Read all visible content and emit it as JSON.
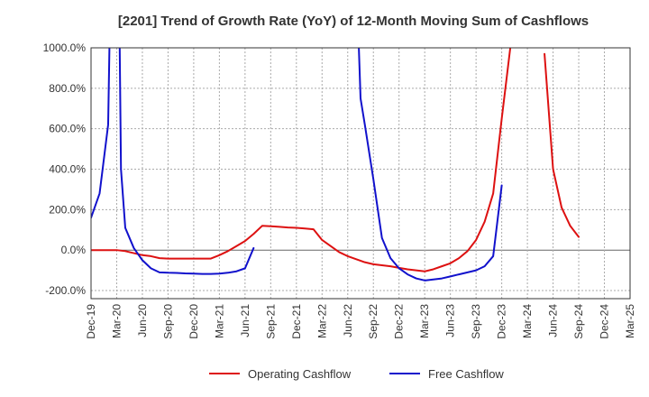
{
  "chart_data": {
    "type": "line",
    "title": "[2201]  Trend of Growth Rate (YoY) of 12-Month Moving Sum of Cashflows",
    "xlabel": "",
    "ylabel": "",
    "ylim": [
      -240,
      1000
    ],
    "yticks": [
      -200,
      0,
      200,
      400,
      600,
      800,
      1000
    ],
    "ytick_labels": [
      "-200.0%",
      "0.0%",
      "200.0%",
      "400.0%",
      "600.0%",
      "800.0%",
      "1000.0%"
    ],
    "x_start": "Dec-19",
    "x_months": 63,
    "xtick_labels": [
      "Dec-19",
      "Mar-20",
      "Jun-20",
      "Sep-20",
      "Dec-20",
      "Mar-21",
      "Jun-21",
      "Sep-21",
      "Dec-21",
      "Mar-22",
      "Jun-22",
      "Sep-22",
      "Dec-22",
      "Mar-23",
      "Jun-23",
      "Sep-23",
      "Dec-23",
      "Mar-24",
      "Jun-24",
      "Sep-24",
      "Dec-24",
      "Mar-25"
    ],
    "grid": true,
    "legend_position": "bottom",
    "series": [
      {
        "name": "Operating Cashflow",
        "color": "#dd1111",
        "points": [
          [
            0,
            0
          ],
          [
            1,
            0
          ],
          [
            2,
            0
          ],
          [
            3,
            0
          ],
          [
            4,
            -5
          ],
          [
            5,
            -15
          ],
          [
            6,
            -25
          ],
          [
            7,
            -30
          ],
          [
            8,
            -40
          ],
          [
            9,
            -42
          ],
          [
            10,
            -42
          ],
          [
            11,
            -42
          ],
          [
            12,
            -42
          ],
          [
            13,
            -42
          ],
          [
            14,
            -42
          ],
          [
            15,
            -25
          ],
          [
            16,
            -5
          ],
          [
            17,
            20
          ],
          [
            18,
            45
          ],
          [
            19,
            80
          ],
          [
            20,
            120
          ],
          [
            21,
            118
          ],
          [
            22,
            115
          ],
          [
            23,
            112
          ],
          [
            24,
            110
          ],
          [
            25,
            107
          ],
          [
            26,
            103
          ],
          [
            27,
            50
          ],
          [
            28,
            20
          ],
          [
            29,
            -10
          ],
          [
            30,
            -30
          ],
          [
            31,
            -45
          ],
          [
            32,
            -60
          ],
          [
            33,
            -70
          ],
          [
            34,
            -75
          ],
          [
            35,
            -80
          ],
          [
            36,
            -88
          ],
          [
            37,
            -95
          ],
          [
            38,
            -100
          ],
          [
            39,
            -105
          ],
          [
            40,
            -95
          ],
          [
            41,
            -80
          ],
          [
            42,
            -65
          ],
          [
            43,
            -40
          ],
          [
            44,
            -5
          ],
          [
            45,
            50
          ],
          [
            46,
            140
          ],
          [
            47,
            280
          ],
          [
            48,
            650
          ],
          [
            49,
            1000
          ],
          null,
          [
            53,
            970
          ],
          [
            54,
            400
          ],
          [
            55,
            210
          ],
          [
            56,
            120
          ],
          [
            57,
            65
          ]
        ]
      },
      {
        "name": "Free Cashflow",
        "color": "#1111cc",
        "points": [
          [
            0,
            160
          ],
          [
            1,
            280
          ],
          [
            2,
            620
          ],
          [
            2.15,
            1000
          ],
          null,
          [
            3.35,
            1000
          ],
          [
            3.5,
            400
          ],
          [
            4,
            110
          ],
          [
            5,
            10
          ],
          [
            6,
            -50
          ],
          [
            7,
            -90
          ],
          [
            8,
            -110
          ],
          [
            9,
            -112
          ],
          [
            10,
            -113
          ],
          [
            11,
            -115
          ],
          [
            12,
            -116
          ],
          [
            13,
            -118
          ],
          [
            14,
            -118
          ],
          [
            15,
            -116
          ],
          [
            16,
            -112
          ],
          [
            17,
            -105
          ],
          [
            18,
            -90
          ],
          [
            19,
            10
          ],
          null,
          [
            31.3,
            1000
          ],
          [
            31.5,
            750
          ],
          [
            32,
            620
          ],
          [
            33,
            350
          ],
          [
            34,
            60
          ],
          [
            35,
            -40
          ],
          [
            36,
            -90
          ],
          [
            37,
            -120
          ],
          [
            38,
            -140
          ],
          [
            39,
            -150
          ],
          [
            40,
            -145
          ],
          [
            41,
            -140
          ],
          [
            42,
            -130
          ],
          [
            43,
            -120
          ],
          [
            44,
            -110
          ],
          [
            45,
            -100
          ],
          [
            46,
            -80
          ],
          [
            47,
            -30
          ],
          [
            48,
            320
          ]
        ]
      }
    ]
  }
}
